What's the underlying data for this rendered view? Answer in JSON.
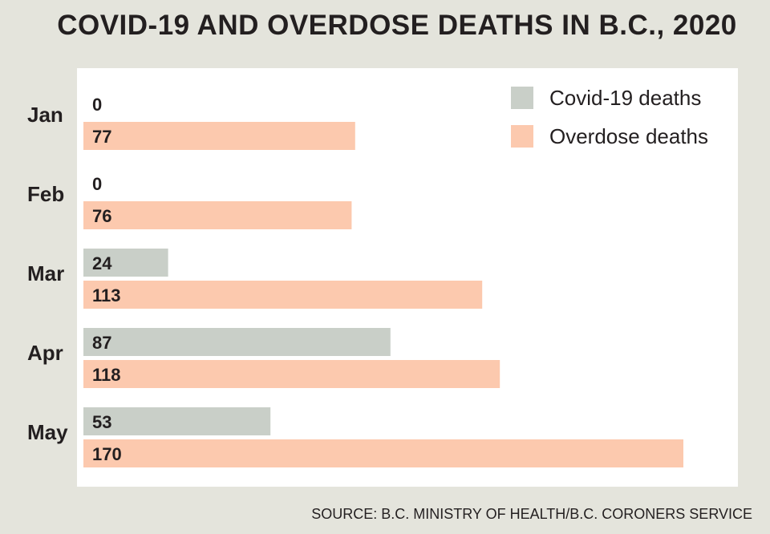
{
  "title": "COVID-19 AND OVERDOSE DEATHS IN B.C., 2020",
  "source": "SOURCE: B.C. MINISTRY OF HEALTH/B.C. CORONERS SERVICE",
  "colors": {
    "background": "#e4e4dc",
    "panel": "#ffffff",
    "covid": "#c9cfc8",
    "overdose": "#fcc9ae",
    "text": "#231f20"
  },
  "chart_data": {
    "type": "bar",
    "orientation": "horizontal",
    "categories": [
      "Jan",
      "Feb",
      "Mar",
      "Apr",
      "May"
    ],
    "series": [
      {
        "name": "Covid-19 deaths",
        "values": [
          0,
          0,
          24,
          87,
          53
        ],
        "color": "#c9cfc8"
      },
      {
        "name": "Overdose deaths",
        "values": [
          77,
          76,
          113,
          118,
          170
        ],
        "color": "#fcc9ae"
      }
    ],
    "xlim": [
      0,
      170
    ],
    "data_labels": true,
    "grid": false,
    "legend_position": "top-right"
  }
}
